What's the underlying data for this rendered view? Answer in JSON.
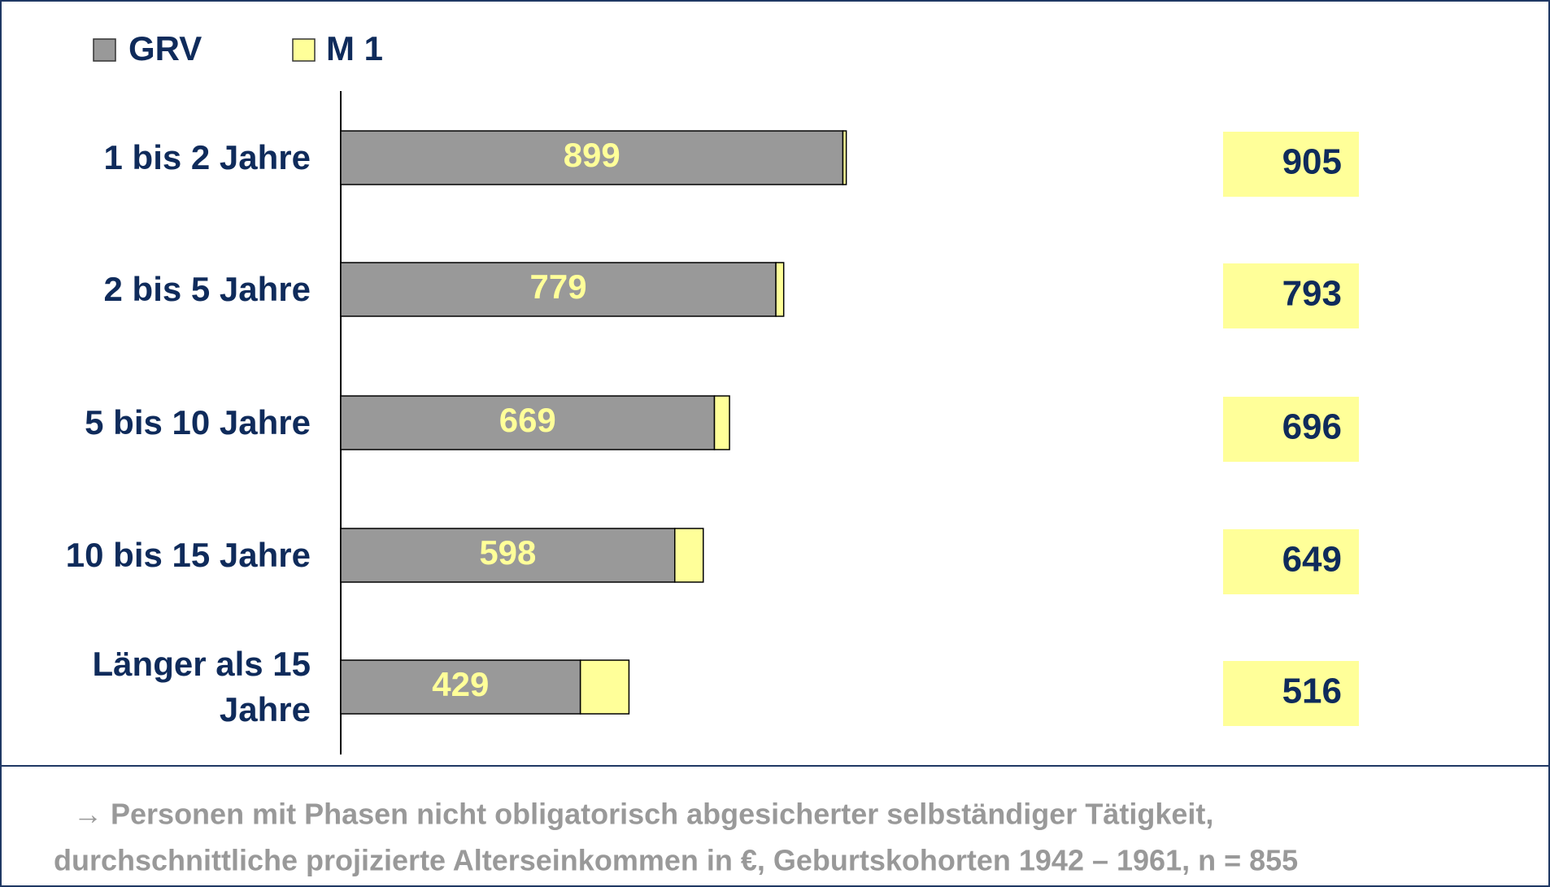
{
  "chart_data": {
    "type": "stacked-barh",
    "categories": [
      "1 bis 2 Jahre",
      "2 bis 5 Jahre",
      "5 bis 10 Jahre",
      "10 bis 15 Jahre",
      "Länger als 15 Jahre"
    ],
    "series": [
      {
        "name": "GRV",
        "color": "#999999",
        "values": [
          899,
          779,
          669,
          598,
          429
        ]
      },
      {
        "name": "M 1",
        "color": "#ffff99",
        "values": [
          6,
          14,
          27,
          51,
          87
        ]
      }
    ],
    "totals": [
      905,
      793,
      696,
      649,
      516
    ],
    "xlim": [
      0,
      1600
    ],
    "footnote": [
      "→ Personen mit Phasen nicht obligatorisch abgesicherter selbständiger Tätigkeit,",
      "durchschnittliche projizierte Alterseinkommen in €, Geburtskohorten 1942 – 1961, n = 855"
    ]
  }
}
